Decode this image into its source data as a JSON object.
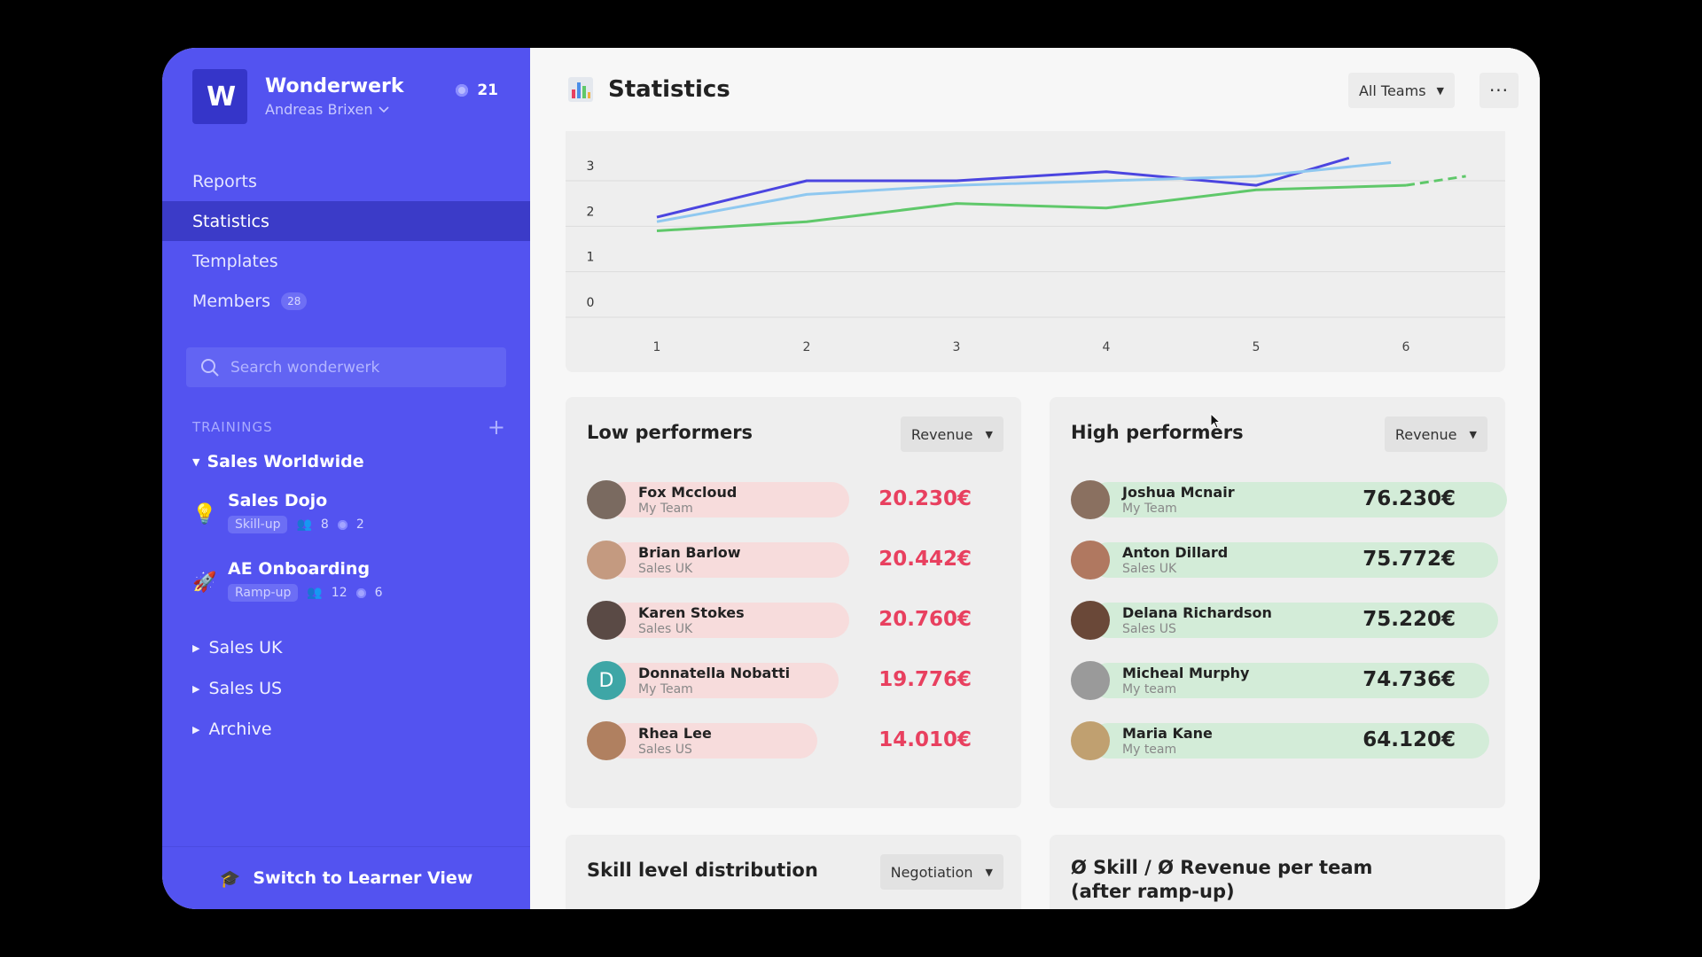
{
  "sidebar": {
    "brand": {
      "name": "Wonderwerk",
      "user": "Andreas Brixen",
      "logo": "W",
      "coins": "21"
    },
    "nav": [
      {
        "label": "Reports",
        "active": false
      },
      {
        "label": "Statistics",
        "active": true
      },
      {
        "label": "Templates",
        "active": false
      },
      {
        "label": "Members",
        "active": false,
        "badge": "28"
      }
    ],
    "search": {
      "placeholder": "Search wonderwerk"
    },
    "trainings_heading": "TRAININGS",
    "open_group": "Sales Worldwide",
    "trainings": [
      {
        "title": "Sales Dojo",
        "tag": "Skill-up",
        "members": "8",
        "coins": "2",
        "icon": "lightbulb-icon"
      },
      {
        "title": "AE Onboarding",
        "tag": "Ramp-up",
        "members": "12",
        "coins": "6",
        "icon": "rocket-icon"
      }
    ],
    "closed_groups": [
      "Sales UK",
      "Sales US",
      "Archive"
    ],
    "switch_label": "Switch to Learner View"
  },
  "header": {
    "title": "Statistics",
    "team_filter": "All Teams"
  },
  "chart_data": {
    "type": "line",
    "x": [
      1,
      2,
      3,
      4,
      5,
      6
    ],
    "y_ticks": [
      0,
      1,
      2,
      3
    ],
    "x_ticks": [
      1,
      2,
      3,
      4,
      5,
      6
    ],
    "grid": true,
    "series": [
      {
        "color": "#4b45e0",
        "values": [
          2.2,
          3.0,
          3.0,
          3.2,
          2.9,
          3.5
        ],
        "x": [
          1,
          2,
          3,
          4,
          5,
          5.62
        ]
      },
      {
        "color": "#8fc8f0",
        "values": [
          2.1,
          2.7,
          2.9,
          3.0,
          3.1,
          3.4
        ],
        "x": [
          1,
          2,
          3,
          4,
          5,
          5.9
        ]
      },
      {
        "color": "#5fc86a",
        "values": [
          1.9,
          2.1,
          2.5,
          2.4,
          2.8,
          2.9
        ],
        "x": [
          1,
          2,
          3,
          4,
          5,
          6
        ]
      },
      {
        "color": "#5fc86a",
        "dashed": true,
        "values": [
          2.9,
          3.1
        ],
        "x": [
          6,
          6.4
        ]
      }
    ],
    "ylim": [
      0,
      3.5
    ]
  },
  "low_performers": {
    "title": "Low performers",
    "metric": "Revenue",
    "rows": [
      {
        "name": "Fox Mccloud",
        "team": "My Team",
        "value": "20.230€",
        "avatar_color": "#7a6a60"
      },
      {
        "name": "Brian Barlow",
        "team": "Sales UK",
        "value": "20.442€",
        "avatar_color": "#c49a80"
      },
      {
        "name": "Karen Stokes",
        "team": "Sales UK",
        "value": "20.760€",
        "avatar_color": "#5a4a45"
      },
      {
        "name": "Donnatella Nobatti",
        "team": "My Team",
        "value": "19.776€",
        "avatar_color": "#3ea6a6",
        "initial": "D"
      },
      {
        "name": "Rhea Lee",
        "team": "Sales US",
        "value": "14.010€",
        "avatar_color": "#b08060"
      }
    ]
  },
  "high_performers": {
    "title": "High performers",
    "metric": "Revenue",
    "rows": [
      {
        "name": "Joshua Mcnair",
        "team": "My Team",
        "value": "76.230€",
        "avatar_color": "#8a7060"
      },
      {
        "name": "Anton Dillard",
        "team": "Sales UK",
        "value": "75.772€",
        "avatar_color": "#b07860"
      },
      {
        "name": "Delana Richardson",
        "team": "Sales US",
        "value": "75.220€",
        "avatar_color": "#6a4838"
      },
      {
        "name": "Micheal Murphy",
        "team": "My team",
        "value": "74.736€",
        "avatar_color": "#9a9a9a"
      },
      {
        "name": "Maria Kane",
        "team": "My team",
        "value": "64.120€",
        "avatar_color": "#c0a070"
      }
    ]
  },
  "skill_distribution": {
    "title": "Skill level distribution",
    "metric": "Negotiation"
  },
  "skill_revenue": {
    "title_line1": "Ø Skill / Ø Revenue per team",
    "title_line2": "(after ramp-up)"
  }
}
